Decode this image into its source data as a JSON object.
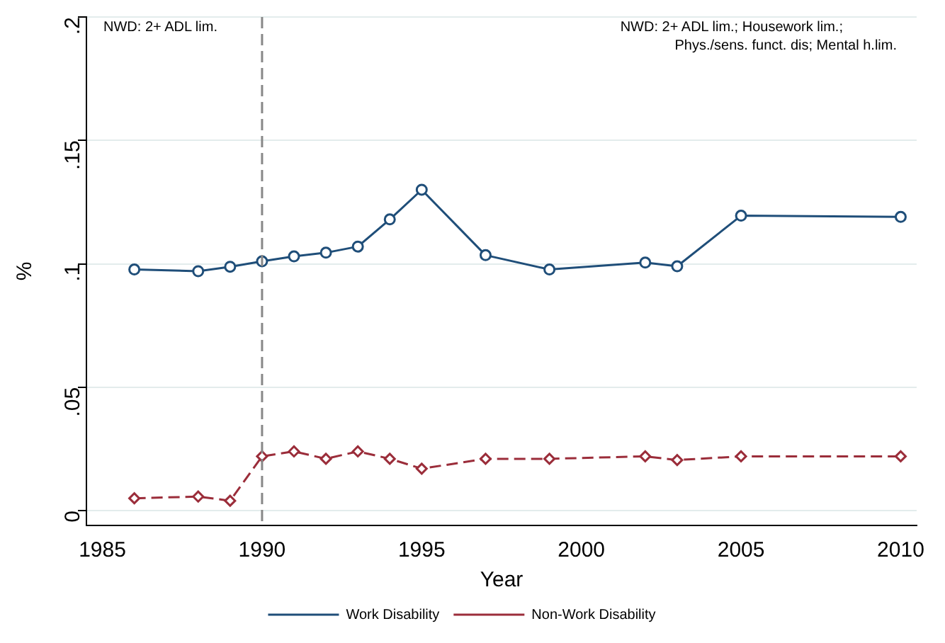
{
  "chart_data": {
    "type": "line",
    "xlabel": "Year",
    "ylabel": "%",
    "x": [
      1986,
      1988,
      1989,
      1990,
      1991,
      1992,
      1993,
      1994,
      1995,
      1997,
      1999,
      2002,
      2003,
      2005,
      2010
    ],
    "series": [
      {
        "name": "Work Disability",
        "color": "#1f4e79",
        "marker": "circle",
        "line_style": "solid",
        "values": [
          0.0977,
          0.097,
          0.0988,
          0.101,
          0.103,
          0.1045,
          0.107,
          0.118,
          0.13,
          0.1035,
          0.0977,
          0.1005,
          0.099,
          0.1195,
          0.119
        ]
      },
      {
        "name": "Non-Work Disability",
        "color": "#9b2d3a",
        "marker": "diamond",
        "line_style": "dashed",
        "values": [
          0.005,
          0.0057,
          0.004,
          0.022,
          0.024,
          0.021,
          0.024,
          0.021,
          0.017,
          0.021,
          0.021,
          0.022,
          0.0205,
          0.022,
          0.022
        ]
      }
    ],
    "xlim": [
      1984.5,
      2010.5
    ],
    "xticks": [
      1985,
      1990,
      1995,
      2000,
      2005,
      2010
    ],
    "ylim": [
      -0.006,
      0.2
    ],
    "yticks": [
      {
        "value": 0,
        "label": "0"
      },
      {
        "value": 0.05,
        "label": ".05"
      },
      {
        "value": 0.1,
        "label": ".1"
      },
      {
        "value": 0.15,
        "label": ".15"
      },
      {
        "value": 0.2,
        "label": ".2"
      }
    ],
    "grid": "y",
    "legend": "bottom",
    "ref_lines": [
      {
        "axis": "x",
        "value": 1990,
        "color": "#888888",
        "line_style": "dashed"
      }
    ],
    "annotations": [
      "NWD: 2+ ADL lim.",
      "NWD: 2+ ADL lim.; Housework lim.;\nPhys./sens. funct. dis; Mental h.lim."
    ]
  }
}
